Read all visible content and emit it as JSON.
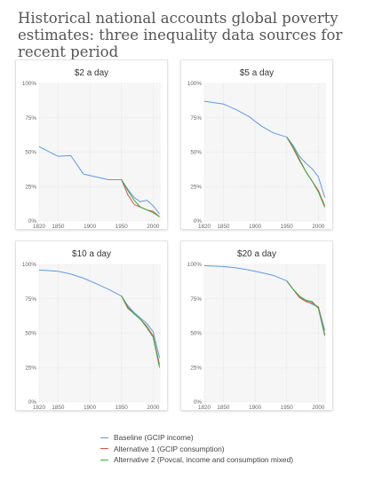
{
  "title": "Historical national accounts global poverty estimates: three inequality data sources for recent period",
  "colors": {
    "baseline": "#5b9be8",
    "alt1": "#e6504a",
    "alt2": "#3aad3a"
  },
  "legend": [
    {
      "key": "baseline",
      "label": "Baseline (GCIP income)"
    },
    {
      "key": "alt1",
      "label": "Alternative 1 (GCIP consumption)"
    },
    {
      "key": "alt2",
      "label": "Alternative 2 (Povcal, income and consumption mixed)"
    }
  ],
  "chart_data": [
    {
      "type": "line",
      "title": "$2 a day",
      "xlim": [
        1820,
        2012
      ],
      "ylim": [
        0,
        100
      ],
      "xticks": [
        "1820",
        "1850",
        "1900",
        "1950",
        "2000"
      ],
      "yticks": [
        "0%",
        "25%",
        "50%",
        "75%",
        "100%"
      ],
      "series": [
        {
          "key": "baseline",
          "x": [
            1820,
            1850,
            1870,
            1890,
            1910,
            1929,
            1950,
            1960,
            1970,
            1980,
            1990,
            2000,
            2010
          ],
          "y": [
            54,
            47,
            47.5,
            34,
            32,
            30,
            30,
            23,
            17,
            14,
            15,
            11,
            5
          ]
        },
        {
          "key": "alt1",
          "x": [
            1950,
            1960,
            1970,
            1980,
            1990,
            2000,
            2010
          ],
          "y": [
            30,
            19,
            12,
            10,
            8,
            7,
            3
          ]
        },
        {
          "key": "alt2",
          "x": [
            1950,
            1960,
            1970,
            1980,
            1990,
            2000,
            2010
          ],
          "y": [
            30,
            22,
            15,
            10,
            8,
            6,
            3
          ]
        }
      ]
    },
    {
      "type": "line",
      "title": "$5 a day",
      "xlim": [
        1820,
        2012
      ],
      "ylim": [
        0,
        100
      ],
      "xticks": [
        "1820",
        "1850",
        "1900",
        "1950",
        "2000"
      ],
      "yticks": [
        "0%",
        "25%",
        "50%",
        "75%",
        "100%"
      ],
      "series": [
        {
          "key": "baseline",
          "x": [
            1820,
            1850,
            1870,
            1890,
            1910,
            1929,
            1950,
            1960,
            1970,
            1980,
            1990,
            2000,
            2010
          ],
          "y": [
            87,
            85,
            81,
            76,
            69,
            64,
            61,
            55,
            47,
            42,
            38,
            32,
            17
          ]
        },
        {
          "key": "alt1",
          "x": [
            1950,
            1960,
            1970,
            1980,
            1990,
            2000,
            2010
          ],
          "y": [
            61,
            53,
            44,
            36,
            29,
            22,
            11
          ]
        },
        {
          "key": "alt2",
          "x": [
            1950,
            1960,
            1970,
            1980,
            1990,
            2000,
            2010
          ],
          "y": [
            61,
            54,
            45,
            36,
            29,
            21,
            10
          ]
        }
      ]
    },
    {
      "type": "line",
      "title": "$10 a day",
      "xlim": [
        1820,
        2012
      ],
      "ylim": [
        0,
        100
      ],
      "xticks": [
        "1820",
        "1850",
        "1900",
        "1950",
        "2000"
      ],
      "yticks": [
        "0%",
        "25%",
        "50%",
        "75%",
        "100%"
      ],
      "series": [
        {
          "key": "baseline",
          "x": [
            1820,
            1850,
            1870,
            1890,
            1910,
            1929,
            1950,
            1960,
            1970,
            1980,
            1990,
            2000,
            2010
          ],
          "y": [
            96,
            95,
            93,
            90,
            86,
            82,
            77,
            70,
            65,
            61,
            57,
            51,
            32
          ]
        },
        {
          "key": "alt1",
          "x": [
            1950,
            1960,
            1970,
            1980,
            1990,
            2000,
            2010
          ],
          "y": [
            77,
            69,
            64,
            60,
            55,
            48,
            27
          ]
        },
        {
          "key": "alt2",
          "x": [
            1950,
            1960,
            1970,
            1980,
            1990,
            2000,
            2010
          ],
          "y": [
            77,
            68,
            64,
            60,
            54,
            47,
            25
          ]
        }
      ]
    },
    {
      "type": "line",
      "title": "$20 a day",
      "xlim": [
        1820,
        2012
      ],
      "ylim": [
        0,
        100
      ],
      "xticks": [
        "1820",
        "1850",
        "1900",
        "1950",
        "2000"
      ],
      "yticks": [
        "0%",
        "25%",
        "50%",
        "75%",
        "100%"
      ],
      "series": [
        {
          "key": "baseline",
          "x": [
            1820,
            1850,
            1870,
            1890,
            1910,
            1929,
            1950,
            1960,
            1970,
            1980,
            1990,
            2000,
            2010
          ],
          "y": [
            99,
            98.5,
            97.5,
            96,
            94,
            92,
            88,
            82,
            76,
            74,
            71,
            69,
            52
          ]
        },
        {
          "key": "alt1",
          "x": [
            1950,
            1960,
            1970,
            1980,
            1990,
            2000,
            2010
          ],
          "y": [
            88,
            82,
            76,
            73,
            72,
            69,
            49
          ]
        },
        {
          "key": "alt2",
          "x": [
            1950,
            1960,
            1970,
            1980,
            1990,
            2000,
            2010
          ],
          "y": [
            88,
            82,
            77,
            74,
            73,
            68,
            48
          ]
        }
      ]
    }
  ]
}
